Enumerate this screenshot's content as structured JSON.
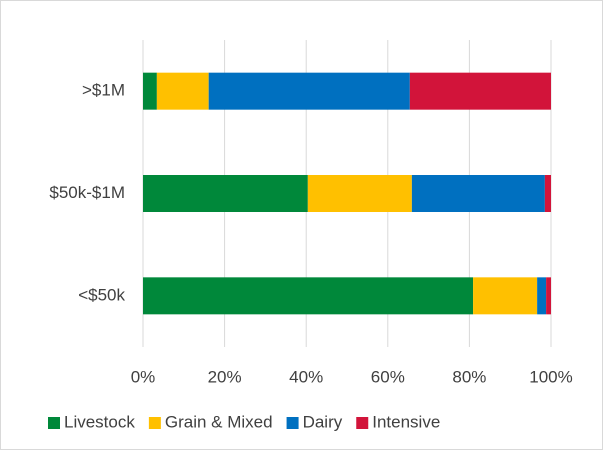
{
  "chart_data": {
    "type": "bar",
    "orientation": "horizontal",
    "stacked": true,
    "categories": [
      ">$1M",
      "$50k-$1M",
      "<$50k"
    ],
    "series": [
      {
        "name": "Livestock",
        "color": "#00883a",
        "values": [
          3.4,
          40.4,
          80.9
        ]
      },
      {
        "name": "Grain & Mixed",
        "color": "#ffc000",
        "values": [
          12.7,
          25.5,
          15.7
        ]
      },
      {
        "name": "Dairy",
        "color": "#0070c0",
        "values": [
          49.3,
          32.6,
          2.2
        ]
      },
      {
        "name": "Intensive",
        "color": "#d2143a",
        "values": [
          34.6,
          1.5,
          1.2
        ]
      }
    ],
    "xlim": [
      0,
      100
    ],
    "xticks": [
      {
        "value": 0,
        "label": "0%"
      },
      {
        "value": 20,
        "label": "20%"
      },
      {
        "value": 40,
        "label": "40%"
      },
      {
        "value": 60,
        "label": "60%"
      },
      {
        "value": 80,
        "label": "80%"
      },
      {
        "value": 100,
        "label": "100%"
      }
    ],
    "grid": true,
    "legend": "bottom"
  }
}
